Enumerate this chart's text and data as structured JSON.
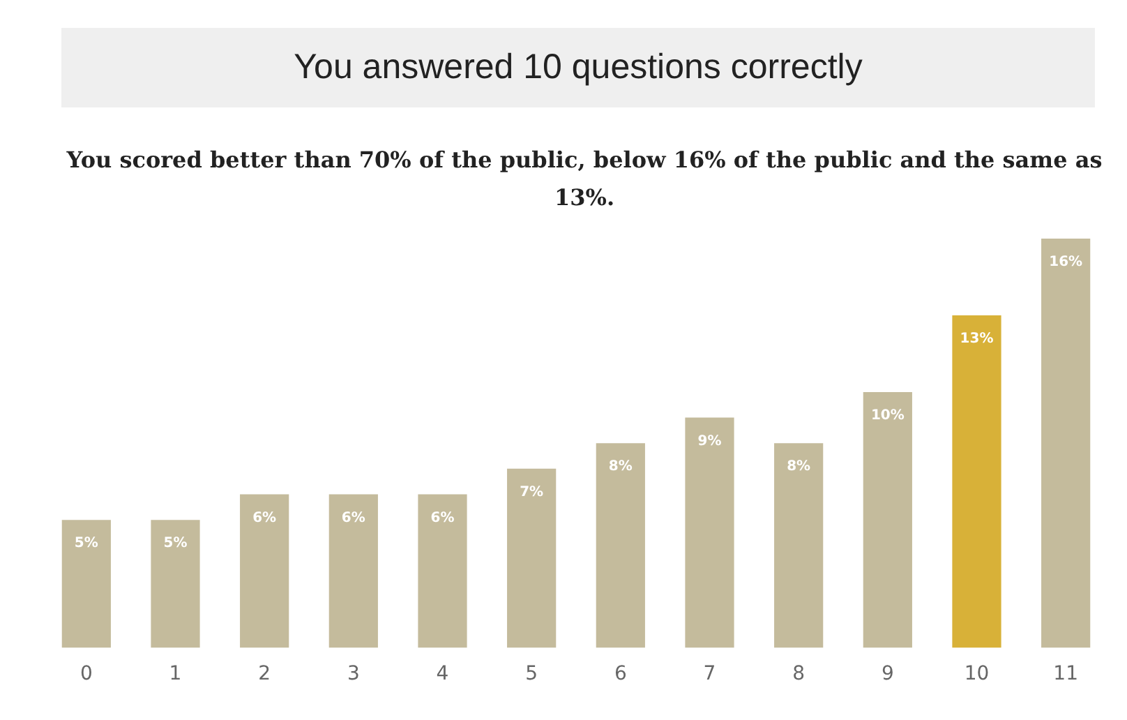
{
  "chart_data": {
    "type": "bar",
    "title": "You answered 10 questions correctly",
    "subtitle": "You scored better than 70% of the public, below 16% of the public and the same as 13%.",
    "categories": [
      "0",
      "1",
      "2",
      "3",
      "4",
      "5",
      "6",
      "7",
      "8",
      "9",
      "10",
      "11"
    ],
    "values": [
      5,
      5,
      6,
      6,
      6,
      7,
      8,
      9,
      8,
      10,
      13,
      16
    ],
    "value_labels": [
      "5%",
      "5%",
      "6%",
      "6%",
      "6%",
      "7%",
      "8%",
      "9%",
      "8%",
      "10%",
      "13%",
      "16%"
    ],
    "colors": [
      "#c4bb9c",
      "#c4bb9c",
      "#c4bb9c",
      "#c4bb9c",
      "#c4bb9c",
      "#c4bb9c",
      "#c4bb9c",
      "#c4bb9c",
      "#c4bb9c",
      "#c4bb9c",
      "#d8b138",
      "#c4bb9c"
    ],
    "grid": false,
    "legend": false
  }
}
